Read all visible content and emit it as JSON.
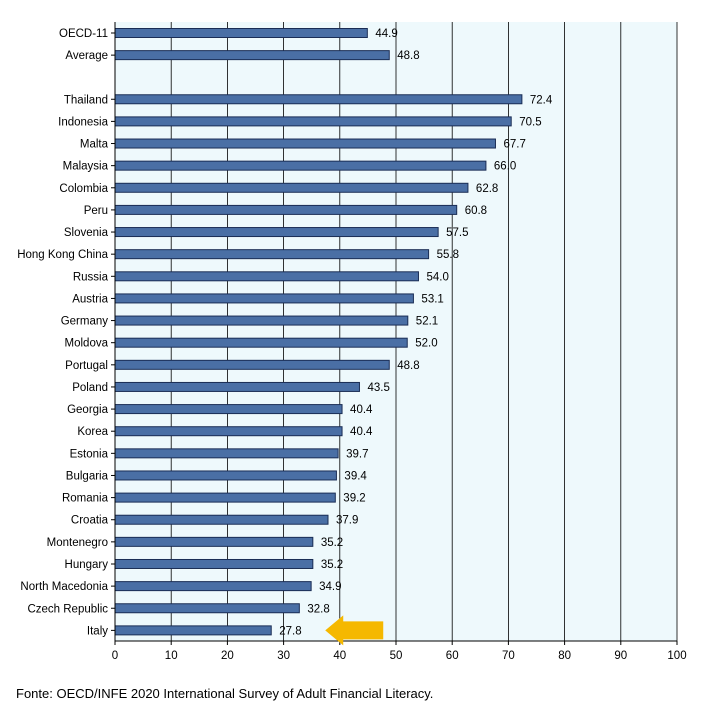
{
  "chart_data": {
    "type": "bar",
    "orientation": "horizontal",
    "categories": [
      "OECD-11",
      "Average",
      "Thailand",
      "Indonesia",
      "Malta",
      "Malaysia",
      "Colombia",
      "Peru",
      "Slovenia",
      "Hong Kong China",
      "Russia",
      "Austria",
      "Germany",
      "Moldova",
      "Portugal",
      "Poland",
      "Georgia",
      "Korea",
      "Estonia",
      "Bulgaria",
      "Romania",
      "Croatia",
      "Montenegro",
      "Hungary",
      "North Macedonia",
      "Czech Republic",
      "Italy"
    ],
    "values": [
      44.9,
      48.8,
      72.4,
      70.5,
      67.7,
      66.0,
      62.8,
      60.8,
      57.5,
      55.8,
      54.0,
      53.1,
      52.1,
      52.0,
      48.8,
      43.5,
      40.4,
      40.4,
      39.7,
      39.4,
      39.2,
      37.9,
      35.2,
      35.2,
      34.9,
      32.8,
      27.8
    ],
    "value_labels": [
      "44.9",
      "48.8",
      "72.4",
      "70.5",
      "67.7",
      "66.0",
      "62.8",
      "60.8",
      "57.5",
      "55.8",
      "54.0",
      "53.1",
      "52.1",
      "52.0",
      "48.8",
      "43.5",
      "40.4",
      "40.4",
      "39.7",
      "39.4",
      "39.2",
      "37.9",
      "35.2",
      "35.2",
      "34.9",
      "32.8",
      "27.8"
    ],
    "gap_after_index": 1,
    "xlim": [
      0,
      100
    ],
    "xticks": [
      0,
      10,
      20,
      30,
      40,
      50,
      60,
      70,
      80,
      90,
      100
    ],
    "xlabel": "",
    "ylabel": "",
    "grid": true,
    "highlight": {
      "category": "Italy",
      "marker": "arrow"
    },
    "colors": {
      "bar_fill": "#4a6fa5",
      "bar_stroke": "#1a2d55",
      "plot_background": "#eef9fc",
      "grid": "#000000",
      "arrow": "#f5b800"
    }
  },
  "source": "Fonte: OECD/INFE 2020 International Survey of Adult Financial Literacy."
}
